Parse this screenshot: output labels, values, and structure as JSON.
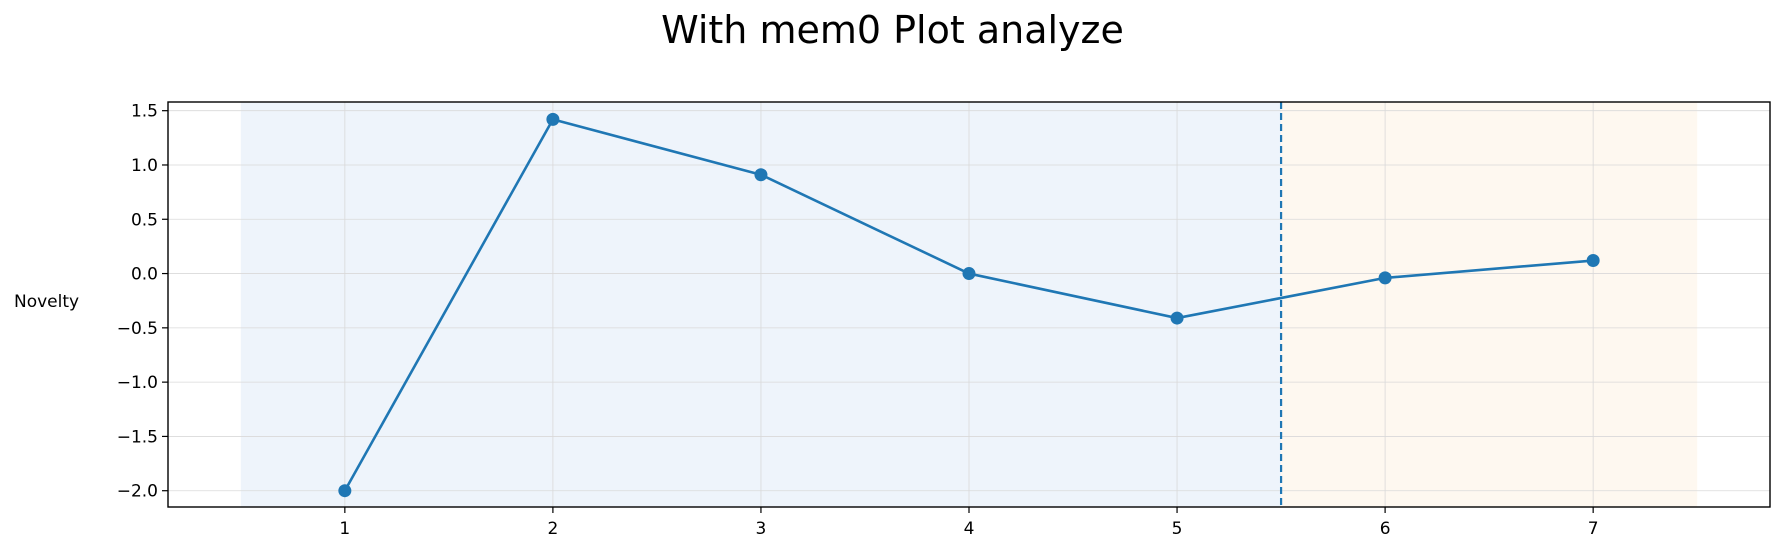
{
  "chart_data": {
    "type": "line",
    "title": "With mem0 Plot analyze",
    "xlabel": "",
    "ylabel": "Novelty",
    "x": [
      1,
      2,
      3,
      4,
      5,
      6,
      7
    ],
    "series": [
      {
        "values": [
          -2.0,
          1.42,
          0.91,
          0.0,
          -0.41,
          -0.04,
          0.12
        ],
        "color": "#1f77b4"
      }
    ],
    "xlim": [
      0.15,
      7.85
    ],
    "ylim": [
      -2.15,
      1.58
    ],
    "xticks": [
      1,
      2,
      3,
      4,
      5,
      6,
      7
    ],
    "yticks": [
      1.5,
      1.0,
      0.5,
      0.0,
      -0.5,
      -1.0,
      -1.5,
      -2.0
    ],
    "ytick_labels": [
      "1.5",
      "1.0",
      "0.5",
      "0.0",
      "−0.5",
      "−1.0",
      "−1.5",
      "−2.0"
    ],
    "grid": true,
    "shaded_regions": [
      {
        "x_start": 0.5,
        "x_end": 5.5,
        "color": "#eef4fb"
      },
      {
        "x_start": 5.5,
        "x_end": 7.5,
        "color": "#fef8f0"
      }
    ],
    "vline": {
      "x": 5.5,
      "style": "dashed",
      "color": "#1f77b4"
    }
  }
}
